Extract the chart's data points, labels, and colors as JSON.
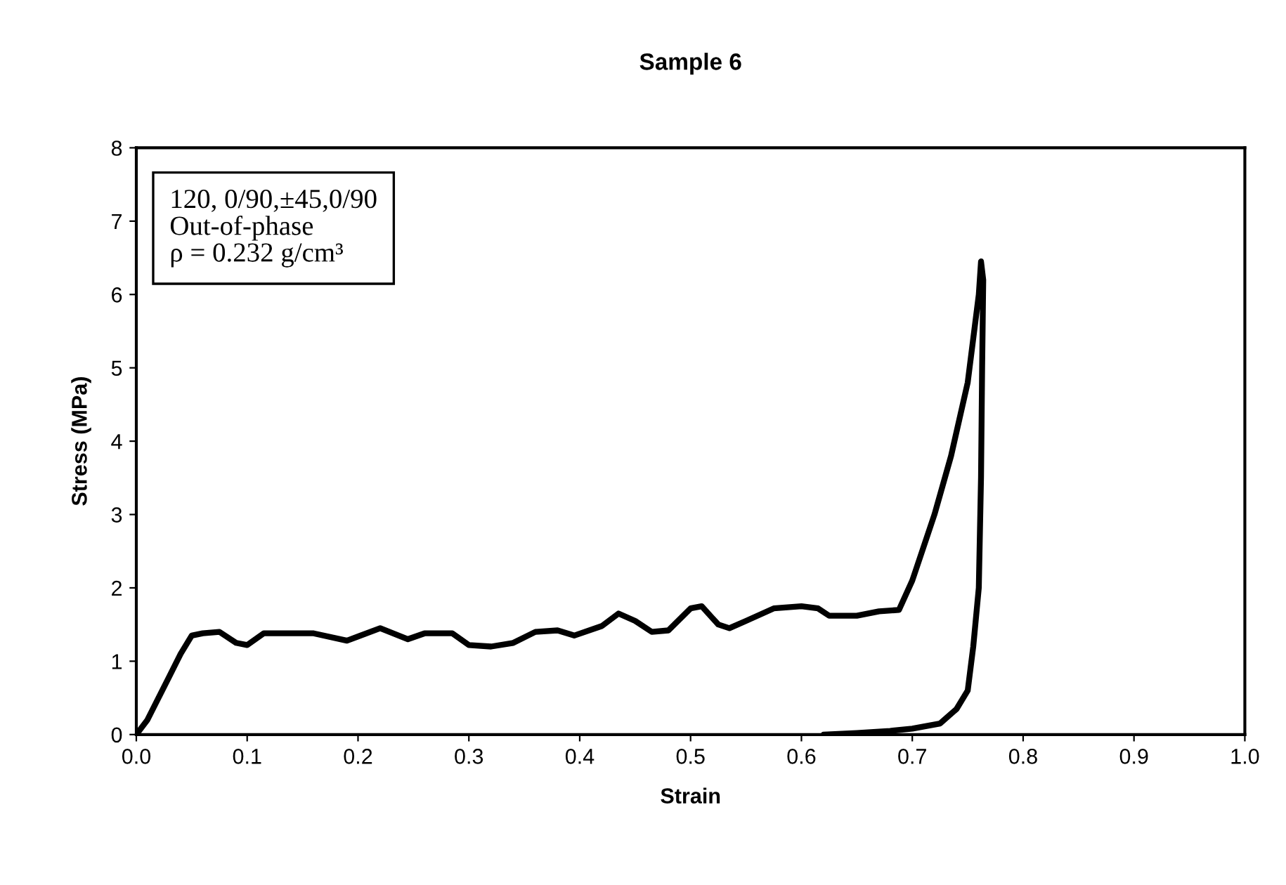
{
  "chart_data": {
    "type": "line",
    "title": "Sample 6",
    "xlabel": "Strain",
    "ylabel": "Stress (MPa)",
    "annotations": [
      "120, 0/90,±45,0/90\nOut-of-phase\nρ = 0.232 g/cm³"
    ],
    "xlim": [
      0,
      1
    ],
    "xticks": [
      {
        "value": 0,
        "label": "0.0"
      },
      0.1,
      0.2,
      0.3,
      0.4,
      0.5,
      0.6,
      0.7,
      0.8,
      0.9,
      {
        "value": 1,
        "label": "1.0"
      }
    ],
    "ylim": [
      0,
      8
    ],
    "yticks": [
      0,
      1,
      2,
      3,
      4,
      5,
      6,
      7,
      8
    ],
    "grid": false,
    "legend": false,
    "marker": "none",
    "line_style": "solid",
    "series": [
      {
        "color": "#000000",
        "x": [
          0,
          0.01,
          0.02,
          0.03,
          0.04,
          0.05,
          0.06,
          0.075,
          0.09,
          0.1,
          0.115,
          0.13,
          0.16,
          0.19,
          0.22,
          0.245,
          0.26,
          0.285,
          0.3,
          0.32,
          0.34,
          0.36,
          0.38,
          0.395,
          0.42,
          0.435,
          0.45,
          0.465,
          0.48,
          0.5,
          0.51,
          0.525,
          0.535,
          0.55,
          0.575,
          0.6,
          0.615,
          0.625,
          0.65,
          0.67,
          0.688,
          0.7,
          0.72,
          0.735,
          0.75,
          0.76,
          0.762,
          0.764,
          0.763,
          0.762,
          0.76,
          0.755,
          0.75,
          0.74,
          0.725,
          0.7,
          0.68,
          0.65,
          0.62
        ],
        "values": [
          0,
          0.2,
          0.5,
          0.8,
          1.1,
          1.35,
          1.38,
          1.4,
          1.25,
          1.22,
          1.38,
          1.38,
          1.38,
          1.28,
          1.45,
          1.3,
          1.38,
          1.38,
          1.22,
          1.2,
          1.25,
          1.4,
          1.42,
          1.35,
          1.48,
          1.65,
          1.55,
          1.4,
          1.42,
          1.72,
          1.75,
          1.5,
          1.45,
          1.55,
          1.72,
          1.75,
          1.72,
          1.62,
          1.62,
          1.68,
          1.7,
          2.1,
          3.0,
          3.8,
          4.8,
          6.0,
          6.45,
          6.2,
          5.0,
          3.5,
          2.0,
          1.2,
          0.6,
          0.35,
          0.15,
          0.08,
          0.05,
          0.02,
          0.0
        ]
      }
    ]
  }
}
